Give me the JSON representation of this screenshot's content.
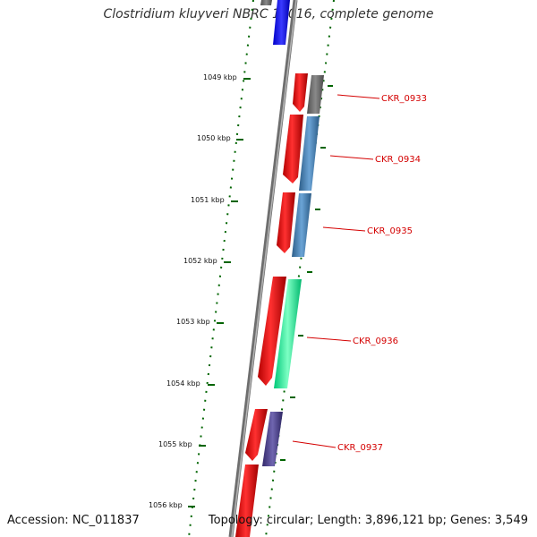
{
  "title": "Clostridium kluyveri NBRC 12016, complete genome",
  "footer": {
    "accession": "Accession: NC_011837",
    "summary": "Topology: circular; Length: 3,896,121 bp; Genes: 3,549"
  },
  "ticks": [
    "1049 kbp",
    "1050 kbp",
    "1051 kbp",
    "1052 kbp",
    "1053 kbp",
    "1054 kbp",
    "1055 kbp",
    "1056 kbp"
  ],
  "genes": [
    {
      "label": "CKR_0933",
      "color": "#707070"
    },
    {
      "label": "CKR_0934",
      "color": "#4682b4"
    },
    {
      "label": "CKR_0935",
      "color": "#4682b4"
    },
    {
      "label": "CKR_0936",
      "color": "#00fa9a"
    },
    {
      "label": "CKR_0937",
      "color": "#483d8b"
    }
  ],
  "colors": {
    "cds": "#ff0000",
    "backbone": "#808080",
    "tick": "#006400",
    "label": "#d40000",
    "top_feature": "#0000ff"
  }
}
